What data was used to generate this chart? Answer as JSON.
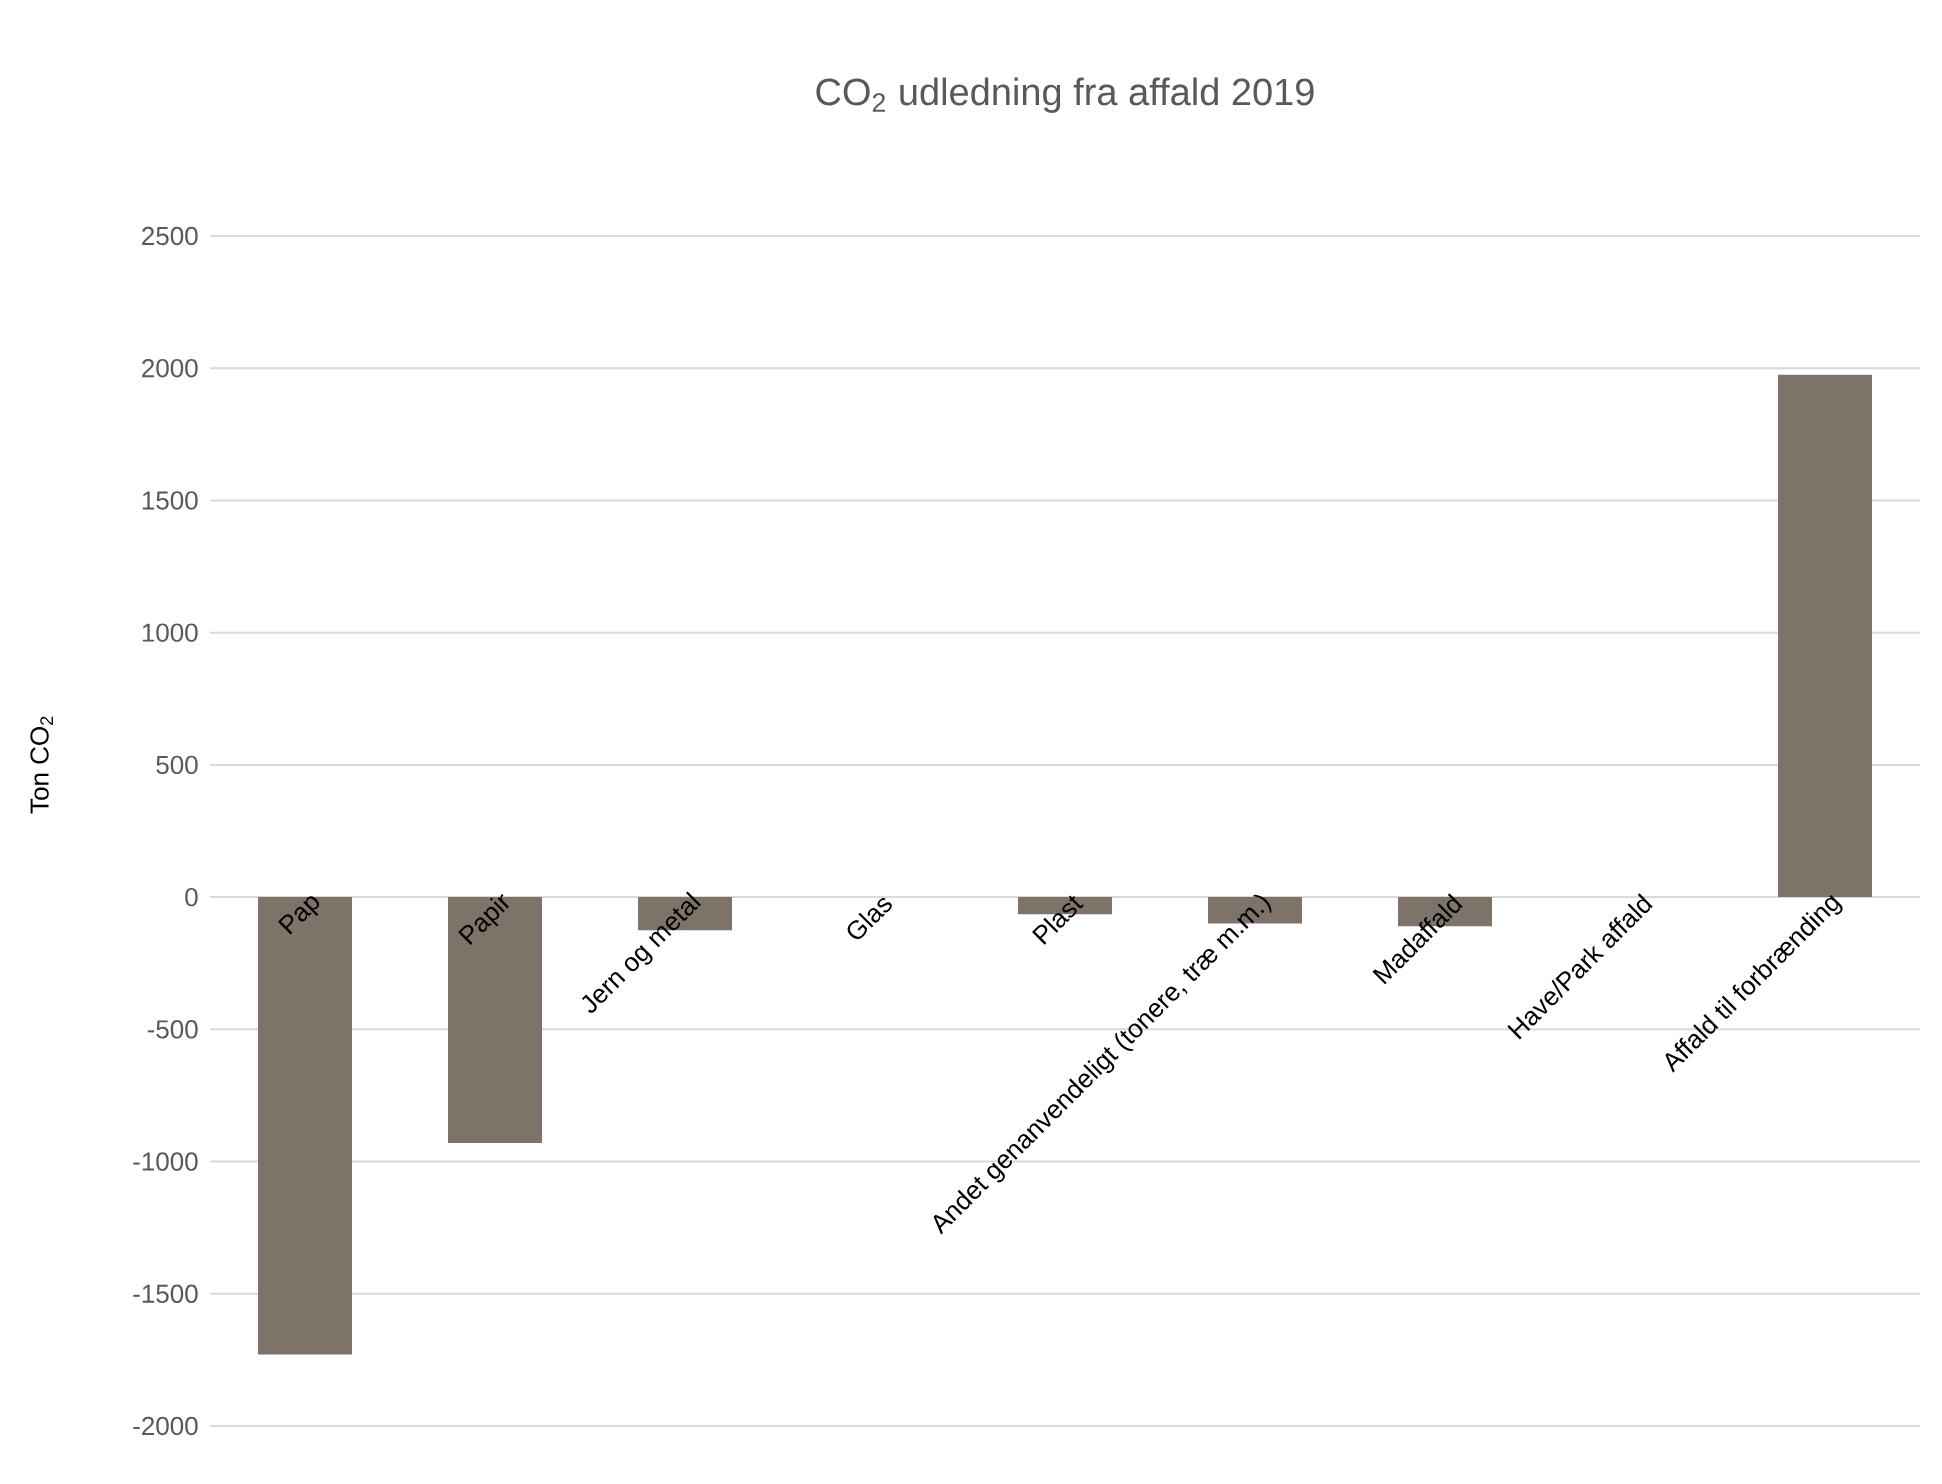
{
  "chart_data": {
    "type": "bar",
    "title": "CO$_{2}$ udledning fra affald 2019",
    "ylabel": "Ton CO$_{2}$",
    "categories": [
      "Pap",
      "Papir",
      "Jern og metal",
      "Glas",
      "Plast",
      "Andet genanvendeligt (tonere, træ m.m.)",
      "Madaffald",
      "Have/Park affald",
      "Affald til forbrænding"
    ],
    "values": [
      -1730,
      -930,
      -125,
      0,
      -65,
      -100,
      -110,
      0,
      1975
    ],
    "color": "#7e7368",
    "ylim": [
      -2000,
      2500
    ],
    "yticks": [
      -2000,
      -1500,
      -1000,
      -500,
      0,
      500,
      1000,
      1500,
      2000,
      2500
    ],
    "grid": "y"
  }
}
